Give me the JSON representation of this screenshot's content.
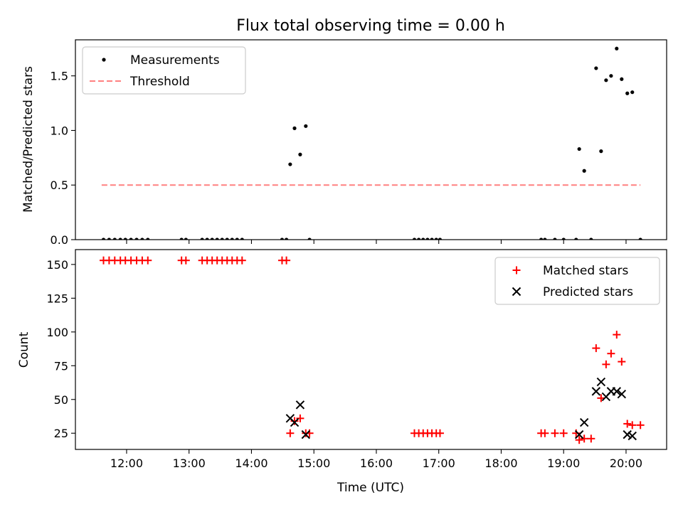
{
  "title": "Flux total observing time = 0.00 h",
  "chart_data": [
    {
      "type": "scatter",
      "panel": "top",
      "xlabel": "",
      "ylabel": "Matched/Predicted stars",
      "xlim": [
        11.18,
        20.65
      ],
      "ylim": [
        0,
        1.83
      ],
      "yticks": [
        0.0,
        0.5,
        1.0,
        1.5
      ],
      "ytick_labels": [
        "0.0",
        "0.5",
        "1.0",
        "1.5"
      ],
      "xticks": [
        12,
        13,
        14,
        15,
        16,
        17,
        18,
        19,
        20
      ],
      "legend": "top-left",
      "series": [
        {
          "name": "Measurements",
          "marker": "dot",
          "color": "#000000",
          "x": [
            11.63,
            11.72,
            11.81,
            11.9,
            11.98,
            12.07,
            12.16,
            12.25,
            12.34,
            12.88,
            12.95,
            13.21,
            13.29,
            13.37,
            13.45,
            13.53,
            13.61,
            13.69,
            13.77,
            13.85,
            14.49,
            14.56,
            14.62,
            14.69,
            14.78,
            14.87,
            14.93,
            16.61,
            16.68,
            16.75,
            16.82,
            16.89,
            16.96,
            17.02,
            18.64,
            18.7,
            18.86,
            19.0,
            19.2,
            19.25,
            19.33,
            19.44,
            19.52,
            19.6,
            19.68,
            19.76,
            19.85,
            19.93,
            20.02,
            20.1,
            20.23
          ],
          "y": [
            0,
            0,
            0,
            0,
            0,
            0,
            0,
            0,
            0,
            0,
            0,
            0,
            0,
            0,
            0,
            0,
            0,
            0,
            0,
            0,
            0,
            0,
            0.69,
            1.02,
            0.78,
            1.04,
            0,
            0,
            0,
            0,
            0,
            0,
            0,
            0,
            0,
            0,
            0,
            0,
            0,
            0.83,
            0.63,
            0,
            1.57,
            0.81,
            1.46,
            1.5,
            1.75,
            1.47,
            1.34,
            1.35,
            0
          ]
        },
        {
          "name": "Threshold",
          "marker": "dashed-line",
          "color": "#ff8080",
          "x": [
            11.6,
            20.23
          ],
          "y": [
            0.5,
            0.5
          ]
        }
      ]
    },
    {
      "type": "scatter",
      "panel": "bottom",
      "xlabel": "Time (UTC)",
      "ylabel": "Count",
      "xlim": [
        11.18,
        20.65
      ],
      "ylim": [
        13,
        161
      ],
      "yticks": [
        25,
        50,
        75,
        100,
        125,
        150
      ],
      "xticks": [
        12,
        13,
        14,
        15,
        16,
        17,
        18,
        19,
        20
      ],
      "xtick_labels": [
        "12:00",
        "13:00",
        "14:00",
        "15:00",
        "16:00",
        "17:00",
        "18:00",
        "19:00",
        "20:00"
      ],
      "legend": "top-right",
      "series": [
        {
          "name": "Matched stars",
          "marker": "plus",
          "color": "#ff0000",
          "x": [
            11.63,
            11.72,
            11.81,
            11.9,
            11.98,
            12.07,
            12.16,
            12.25,
            12.34,
            12.88,
            12.95,
            13.21,
            13.29,
            13.37,
            13.45,
            13.53,
            13.61,
            13.69,
            13.77,
            13.85,
            14.49,
            14.56,
            14.62,
            14.69,
            14.78,
            14.87,
            14.93,
            16.61,
            16.68,
            16.75,
            16.82,
            16.89,
            16.96,
            17.02,
            18.64,
            18.7,
            18.86,
            19.0,
            19.2,
            19.25,
            19.33,
            19.44,
            19.52,
            19.6,
            19.68,
            19.76,
            19.85,
            19.93,
            20.02,
            20.1,
            20.23
          ],
          "y": [
            153,
            153,
            153,
            153,
            153,
            153,
            153,
            153,
            153,
            153,
            153,
            153,
            153,
            153,
            153,
            153,
            153,
            153,
            153,
            153,
            153,
            153,
            25,
            34,
            36,
            25,
            25,
            25,
            25,
            25,
            25,
            25,
            25,
            25,
            25,
            25,
            25,
            25,
            25,
            20,
            21,
            21,
            88,
            51,
            76,
            84,
            98,
            78,
            32,
            31,
            31
          ]
        },
        {
          "name": "Predicted stars",
          "marker": "x",
          "color": "#000000",
          "x": [
            14.62,
            14.69,
            14.78,
            14.87,
            19.25,
            19.33,
            19.52,
            19.6,
            19.68,
            19.76,
            19.85,
            19.93,
            20.02,
            20.1
          ],
          "y": [
            36,
            33,
            46,
            24,
            24,
            33,
            56,
            63,
            52,
            56,
            56,
            54,
            24,
            23
          ]
        }
      ]
    }
  ]
}
